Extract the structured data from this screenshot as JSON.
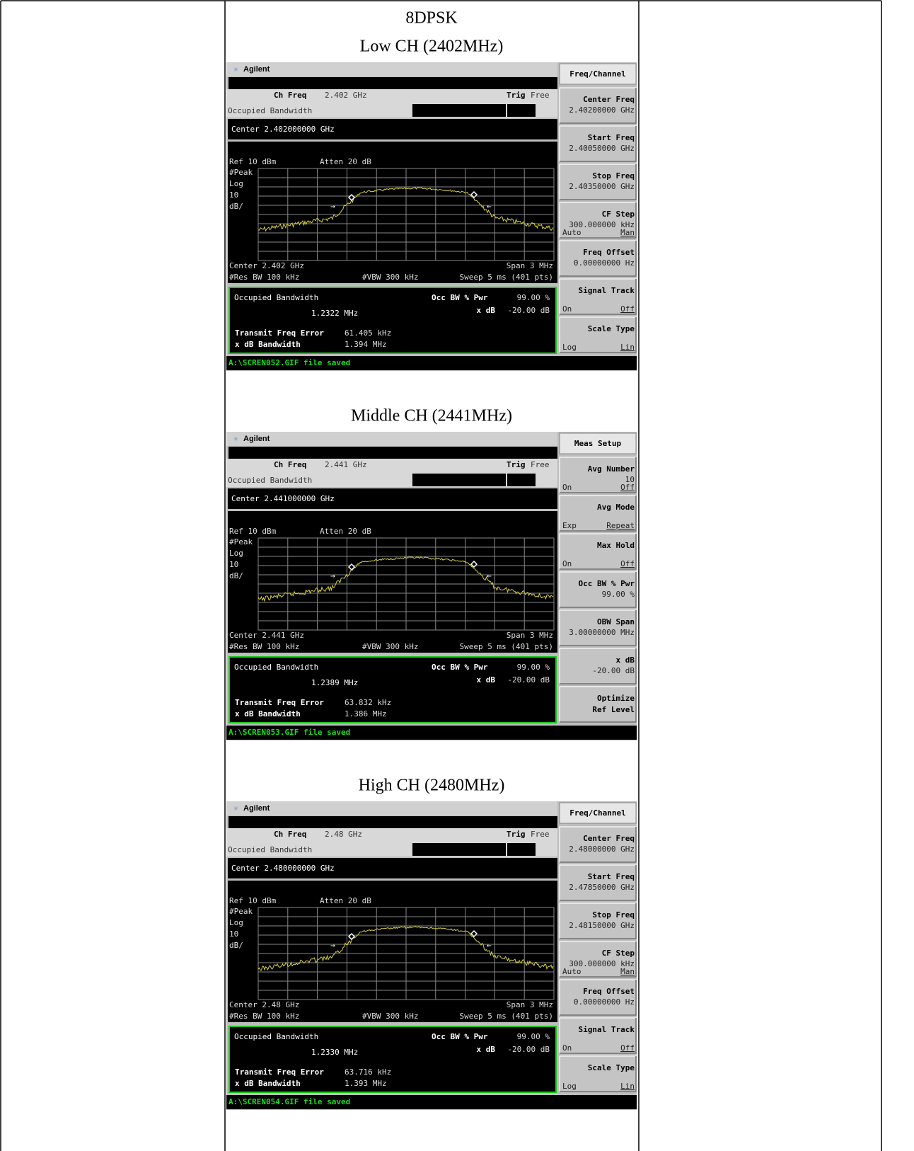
{
  "heading": "8DPSK",
  "panels": [
    {
      "caption": "Low CH (2402MHz)",
      "brand": "Agilent",
      "ch_freq_label": "Ch Freq",
      "ch_freq": "2.402 GHz",
      "trig_label": "Trig",
      "trig": "Free",
      "mode": "Occupied Bandwidth",
      "center": "Center 2.402000000 GHz",
      "ref": "Ref 10 dBm",
      "atten": "Atten 20 dB",
      "scale": [
        "#Peak",
        "Log",
        "10",
        "dB/"
      ],
      "center_foot": "Center 2.402 GHz",
      "span": "Span 3 MHz",
      "res_bw": "#Res BW 100 kHz",
      "vbw": "#VBW 300 kHz",
      "sweep": "Sweep 5 ms (401 pts)",
      "result_title": "Occupied Bandwidth",
      "result": "1.2322 MHz",
      "occ_label": "Occ BW % Pwr",
      "occ": "99.00 %",
      "xdb_label": "x dB",
      "xdb": "-20.00 dB",
      "tfe_label": "Transmit Freq Error",
      "tfe": "61.405 kHz",
      "xbw_label": "x dB Bandwidth",
      "xbw": "1.394 MHz",
      "status": "A:\\SCREN052.GIF file saved",
      "menu": "Freq/Channel",
      "softkeys": [
        {
          "label": "Center Freq",
          "value": "2.40200000 GHz"
        },
        {
          "label": "Start Freq",
          "value": "2.40050000 GHz"
        },
        {
          "label": "Stop Freq",
          "value": "2.40350000 GHz"
        },
        {
          "label": "CF Step",
          "value": "300.000000 kHz",
          "left": "Auto",
          "right": "Man"
        },
        {
          "label": "Freq Offset",
          "value": "0.00000000  Hz"
        },
        {
          "label": "Signal Track",
          "left": "On",
          "right": "Off"
        },
        {
          "label": "Scale Type",
          "left": "Log",
          "right": "Lin"
        }
      ]
    },
    {
      "caption": "Middle CH (2441MHz)",
      "brand": "Agilent",
      "ch_freq_label": "Ch Freq",
      "ch_freq": "2.441 GHz",
      "trig_label": "Trig",
      "trig": "Free",
      "mode": "Occupied Bandwidth",
      "center": "Center 2.441000000 GHz",
      "ref": "Ref 10 dBm",
      "atten": "Atten 20 dB",
      "scale": [
        "#Peak",
        "Log",
        "10",
        "dB/"
      ],
      "center_foot": "Center 2.441 GHz",
      "span": "Span 3 MHz",
      "res_bw": "#Res BW 100 kHz",
      "vbw": "#VBW 300 kHz",
      "sweep": "Sweep 5 ms (401 pts)",
      "result_title": "Occupied Bandwidth",
      "result": "1.2389 MHz",
      "occ_label": "Occ BW % Pwr",
      "occ": "99.00 %",
      "xdb_label": "x dB",
      "xdb": "-20.00 dB",
      "tfe_label": "Transmit Freq Error",
      "tfe": "63.832 kHz",
      "xbw_label": "x dB Bandwidth",
      "xbw": "1.386 MHz",
      "status": "A:\\SCREN053.GIF file saved",
      "menu": "Meas Setup",
      "softkeys": [
        {
          "label": "Avg Number",
          "value": "10",
          "left": "On",
          "right": "Off"
        },
        {
          "label": "Avg Mode",
          "left": "Exp",
          "right": "Repeat"
        },
        {
          "label": "Max Hold",
          "left": "On",
          "right": "Off"
        },
        {
          "label": "Occ BW % Pwr",
          "value": "99.00 %"
        },
        {
          "label": "OBW Span",
          "value": "3.00000000 MHz"
        },
        {
          "label": "x dB",
          "value": "-20.00 dB"
        },
        {
          "label": "Optimize",
          "label2": "Ref Level"
        }
      ]
    },
    {
      "caption": "High CH (2480MHz)",
      "brand": "Agilent",
      "ch_freq_label": "Ch Freq",
      "ch_freq": "2.48 GHz",
      "trig_label": "Trig",
      "trig": "Free",
      "mode": "Occupied Bandwidth",
      "center": "Center 2.480000000 GHz",
      "ref": "Ref 10 dBm",
      "atten": "Atten 20 dB",
      "scale": [
        "#Peak",
        "Log",
        "10",
        "dB/"
      ],
      "center_foot": "Center 2.48 GHz",
      "span": "Span 3 MHz",
      "res_bw": "#Res BW 100 kHz",
      "vbw": "#VBW 300 kHz",
      "sweep": "Sweep 5 ms (401 pts)",
      "result_title": "Occupied Bandwidth",
      "result": "1.2330 MHz",
      "occ_label": "Occ BW % Pwr",
      "occ": "99.00 %",
      "xdb_label": "x dB",
      "xdb": "-20.00 dB",
      "tfe_label": "Transmit Freq Error",
      "tfe": "63.716 kHz",
      "xbw_label": "x dB Bandwidth",
      "xbw": "1.393 MHz",
      "status": "A:\\SCREN054.GIF file saved",
      "menu": "Freq/Channel",
      "softkeys": [
        {
          "label": "Center Freq",
          "value": "2.48000000 GHz"
        },
        {
          "label": "Start Freq",
          "value": "2.47850000 GHz"
        },
        {
          "label": "Stop Freq",
          "value": "2.48150000 GHz"
        },
        {
          "label": "CF Step",
          "value": "300.000000 kHz",
          "left": "Auto",
          "right": "Man"
        },
        {
          "label": "Freq Offset",
          "value": "0.00000000  Hz"
        },
        {
          "label": "Signal Track",
          "left": "On",
          "right": "Off"
        },
        {
          "label": "Scale Type",
          "left": "Log",
          "right": "Lin"
        }
      ]
    }
  ]
}
